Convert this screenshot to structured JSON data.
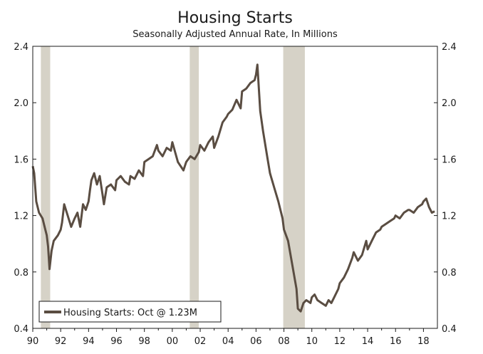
{
  "chart_data": {
    "type": "line",
    "title": "Housing Starts",
    "subtitle": "Seasonally Adjusted Annual Rate, In Millions",
    "xlabel": "",
    "ylabel": "",
    "xlim": [
      1990,
      2019
    ],
    "ylim": [
      0.4,
      2.4
    ],
    "y_ticks": [
      "2.4",
      "2.0",
      "1.6",
      "1.2",
      "0.8",
      "0.4"
    ],
    "y_tick_values": [
      2.4,
      2.0,
      1.6,
      1.2,
      0.8,
      0.4
    ],
    "x_ticks": [
      "90",
      "92",
      "94",
      "96",
      "98",
      "00",
      "02",
      "04",
      "06",
      "08",
      "10",
      "12",
      "14",
      "16",
      "18"
    ],
    "x_tick_values": [
      1990,
      1992,
      1994,
      1996,
      1998,
      2000,
      2002,
      2004,
      2006,
      2008,
      2010,
      2012,
      2014,
      2016,
      2018
    ],
    "grid": false,
    "legend": {
      "position": "bottom-left",
      "label": "Housing Starts: Oct @ 1.23M"
    },
    "recessions": [
      [
        1990.58,
        1991.25
      ],
      [
        2001.25,
        2001.9
      ],
      [
        2007.95,
        2009.5
      ]
    ],
    "colors": {
      "line": "#5a4d42",
      "recession": "#d6d2c7",
      "axis": "#1a1a1a"
    },
    "series": [
      {
        "name": "Housing Starts",
        "x": [
          1990.0,
          1990.1,
          1990.25,
          1990.45,
          1990.7,
          1990.9,
          1991.0,
          1991.1,
          1991.2,
          1991.35,
          1991.5,
          1991.8,
          1992.0,
          1992.1,
          1992.25,
          1992.5,
          1992.75,
          1993.0,
          1993.2,
          1993.4,
          1993.6,
          1993.8,
          1994.0,
          1994.1,
          1994.2,
          1994.4,
          1994.6,
          1994.8,
          1995.0,
          1995.1,
          1995.3,
          1995.6,
          1995.9,
          1996.0,
          1996.3,
          1996.6,
          1996.9,
          1997.0,
          1997.3,
          1997.6,
          1997.9,
          1998.0,
          1998.3,
          1998.6,
          1998.9,
          1999.0,
          1999.3,
          1999.6,
          1999.9,
          2000.0,
          2000.4,
          2000.8,
          2001.0,
          2001.3,
          2001.6,
          2001.9,
          2002.0,
          2002.3,
          2002.6,
          2002.9,
          2003.0,
          2003.3,
          2003.6,
          2003.9,
          2004.0,
          2004.3,
          2004.6,
          2004.9,
          2005.0,
          2005.3,
          2005.6,
          2005.9,
          2006.0,
          2006.1,
          2006.3,
          2006.5,
          2006.8,
          2007.0,
          2007.3,
          2007.6,
          2007.9,
          2008.0,
          2008.3,
          2008.6,
          2008.9,
          2009.0,
          2009.2,
          2009.4,
          2009.6,
          2009.9,
          2010.0,
          2010.2,
          2010.4,
          2010.7,
          2011.0,
          2011.2,
          2011.4,
          2011.6,
          2011.9,
          2012.0,
          2012.3,
          2012.6,
          2012.9,
          2013.0,
          2013.3,
          2013.6,
          2013.9,
          2014.0,
          2014.3,
          2014.6,
          2014.9,
          2015.0,
          2015.3,
          2015.6,
          2015.9,
          2016.0,
          2016.3,
          2016.6,
          2016.9,
          2017.0,
          2017.3,
          2017.6,
          2017.9,
          2018.0,
          2018.2,
          2018.4,
          2018.6,
          2018.8
        ],
        "values": [
          1.55,
          1.5,
          1.3,
          1.22,
          1.18,
          1.1,
          1.06,
          0.98,
          0.82,
          0.95,
          1.02,
          1.06,
          1.1,
          1.15,
          1.28,
          1.2,
          1.12,
          1.18,
          1.22,
          1.12,
          1.28,
          1.24,
          1.3,
          1.38,
          1.45,
          1.5,
          1.42,
          1.48,
          1.35,
          1.28,
          1.4,
          1.42,
          1.38,
          1.45,
          1.48,
          1.44,
          1.42,
          1.48,
          1.46,
          1.52,
          1.48,
          1.58,
          1.6,
          1.62,
          1.7,
          1.66,
          1.62,
          1.68,
          1.66,
          1.72,
          1.58,
          1.52,
          1.58,
          1.62,
          1.6,
          1.65,
          1.7,
          1.66,
          1.72,
          1.76,
          1.68,
          1.76,
          1.86,
          1.9,
          1.92,
          1.95,
          2.02,
          1.96,
          2.08,
          2.1,
          2.14,
          2.16,
          2.2,
          2.27,
          1.94,
          1.8,
          1.62,
          1.5,
          1.4,
          1.3,
          1.18,
          1.1,
          1.02,
          0.85,
          0.68,
          0.54,
          0.52,
          0.58,
          0.6,
          0.58,
          0.62,
          0.64,
          0.6,
          0.58,
          0.56,
          0.6,
          0.58,
          0.62,
          0.68,
          0.72,
          0.76,
          0.82,
          0.9,
          0.94,
          0.88,
          0.92,
          1.02,
          0.96,
          1.02,
          1.08,
          1.1,
          1.12,
          1.14,
          1.16,
          1.18,
          1.2,
          1.18,
          1.22,
          1.24,
          1.24,
          1.22,
          1.26,
          1.28,
          1.3,
          1.32,
          1.26,
          1.22,
          1.23
        ]
      }
    ]
  }
}
